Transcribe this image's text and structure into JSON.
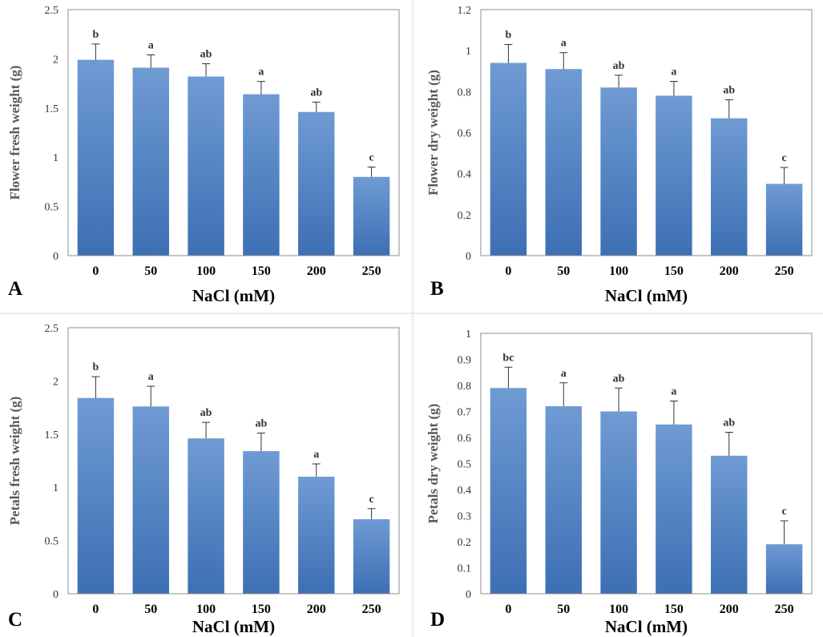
{
  "colors": {
    "bar_top": "#6f9bd3",
    "bar_bottom": "#3d6fb4",
    "error_bar": "#333333"
  },
  "chart_data": [
    {
      "panel": "A",
      "type": "bar",
      "categories": [
        "0",
        "50",
        "100",
        "150",
        "200",
        "250"
      ],
      "values": [
        1.99,
        1.91,
        1.82,
        1.64,
        1.46,
        0.8
      ],
      "errors": [
        0.16,
        0.13,
        0.13,
        0.13,
        0.1,
        0.1
      ],
      "letters": [
        "b",
        "a",
        "ab",
        "a",
        "ab",
        "c"
      ],
      "xlabel": "NaCl (mM)",
      "ylabel": "Flower fresh weight (g)",
      "ylim": [
        0,
        2.5
      ],
      "yticks": [
        "0",
        "0.5",
        "1",
        "1.5",
        "2",
        "2.5"
      ]
    },
    {
      "panel": "B",
      "type": "bar",
      "categories": [
        "0",
        "50",
        "100",
        "150",
        "200",
        "250"
      ],
      "values": [
        0.94,
        0.91,
        0.82,
        0.78,
        0.67,
        0.35
      ],
      "errors": [
        0.09,
        0.08,
        0.06,
        0.07,
        0.09,
        0.08
      ],
      "letters": [
        "b",
        "a",
        "ab",
        "a",
        "ab",
        "c"
      ],
      "xlabel": "NaCl (mM)",
      "ylabel": "Flower dry weight (g)",
      "ylim": [
        0,
        1.2
      ],
      "yticks": [
        "0",
        "0.2",
        "0.4",
        "0.6",
        "0.8",
        "1",
        "1.2"
      ]
    },
    {
      "panel": "C",
      "type": "bar",
      "categories": [
        "0",
        "50",
        "100",
        "150",
        "200",
        "250"
      ],
      "values": [
        1.84,
        1.76,
        1.46,
        1.34,
        1.1,
        0.7
      ],
      "errors": [
        0.2,
        0.19,
        0.15,
        0.17,
        0.12,
        0.1
      ],
      "letters": [
        "b",
        "a",
        "ab",
        "ab",
        "a",
        "c"
      ],
      "xlabel": "NaCl (mM)",
      "ylabel": "Petals fresh weight (g)",
      "ylim": [
        0,
        2.5
      ],
      "yticks": [
        "0",
        "0.5",
        "1",
        "1.5",
        "2",
        "2.5"
      ]
    },
    {
      "panel": "D",
      "type": "bar",
      "categories": [
        "0",
        "50",
        "100",
        "150",
        "200",
        "250"
      ],
      "values": [
        0.79,
        0.72,
        0.7,
        0.65,
        0.53,
        0.19
      ],
      "errors": [
        0.08,
        0.09,
        0.09,
        0.09,
        0.09,
        0.09
      ],
      "letters": [
        "bc",
        "a",
        "ab",
        "a",
        "ab",
        "c"
      ],
      "xlabel": "NaCl (mM)",
      "ylabel": "Petals dry weight (g)",
      "ylim": [
        0,
        1
      ],
      "yticks": [
        "0",
        "0.1",
        "0.2",
        "0.3",
        "0.4",
        "0.5",
        "0.6",
        "0.7",
        "0.8",
        "0.9",
        "1"
      ]
    }
  ]
}
